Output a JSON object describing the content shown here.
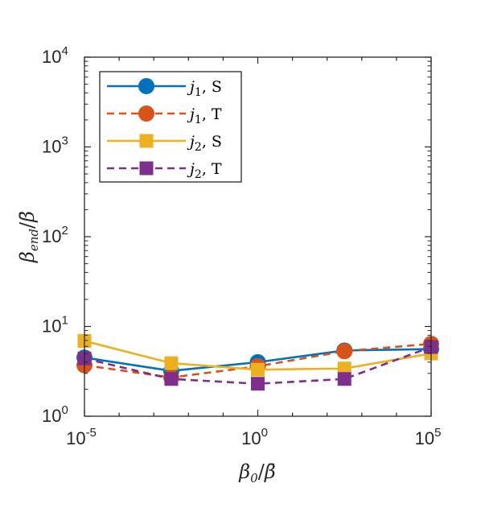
{
  "chart_data": {
    "type": "line",
    "x_scale": "log",
    "y_scale": "log",
    "xlim": [
      1e-05,
      100000
    ],
    "ylim": [
      1,
      10000
    ],
    "x_ticks": [
      {
        "base": "10",
        "exp": "-5",
        "value": 1e-05
      },
      {
        "base": "10",
        "exp": "0",
        "value": 1
      },
      {
        "base": "10",
        "exp": "5",
        "value": 100000
      }
    ],
    "y_ticks": [
      {
        "base": "10",
        "exp": "0",
        "value": 1
      },
      {
        "base": "10",
        "exp": "1",
        "value": 10
      },
      {
        "base": "10",
        "exp": "2",
        "value": 100
      },
      {
        "base": "10",
        "exp": "3",
        "value": 1000
      },
      {
        "base": "10",
        "exp": "4",
        "value": 10000
      }
    ],
    "xlabel": {
      "main": "β",
      "sub": "0",
      "sep": "/",
      "tail": "β̄"
    },
    "ylabel": {
      "main": "β",
      "sub": "end",
      "sep": "/",
      "tail": "β̄"
    },
    "x": [
      1e-05,
      0.0032,
      1,
      316,
      100000
    ],
    "legend_position": "top-left",
    "series": [
      {
        "name": {
          "var": "j",
          "sub": "1",
          "rest": ", S"
        },
        "color": "#0072BD",
        "marker": "circle",
        "dash": "solid",
        "values": [
          4.5,
          3.2,
          4.0,
          5.4,
          5.6
        ]
      },
      {
        "name": {
          "var": "j",
          "sub": "1",
          "rest": ", T"
        },
        "color": "#D95319",
        "marker": "circle",
        "dash": "dashed",
        "values": [
          3.7,
          2.7,
          3.6,
          5.3,
          6.4
        ]
      },
      {
        "name": {
          "var": "j",
          "sub": "2",
          "rest": ", S"
        },
        "color": "#EDB120",
        "marker": "square",
        "dash": "solid",
        "values": [
          6.9,
          3.9,
          3.3,
          3.4,
          5.0
        ]
      },
      {
        "name": {
          "var": "j",
          "sub": "2",
          "rest": ", T"
        },
        "color": "#7E2F8E",
        "marker": "square",
        "dash": "dashed",
        "values": [
          4.4,
          2.6,
          2.3,
          2.6,
          5.9
        ]
      }
    ]
  }
}
